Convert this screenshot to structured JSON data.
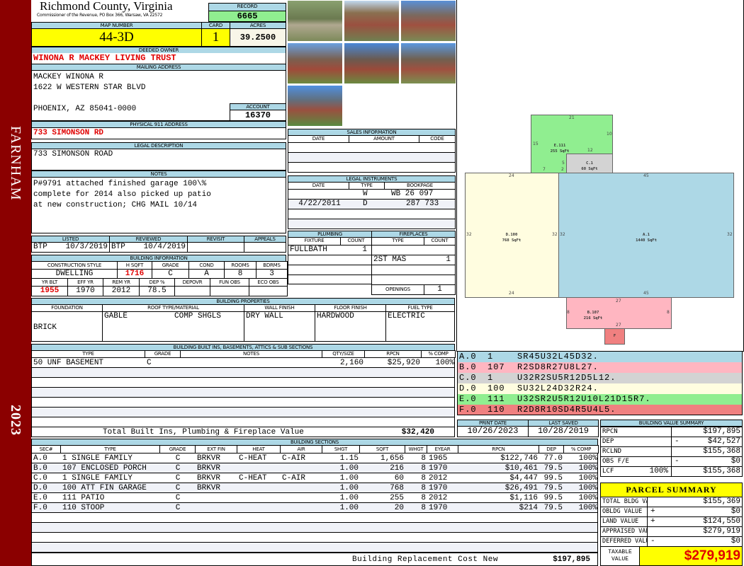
{
  "sidebar": {
    "district": "FARNHAM",
    "year": "2023"
  },
  "header": {
    "county": "Richmond County, Virginia",
    "office": "Commissioner of the Revenue, PO Box 366, Warsaw, VA 22572",
    "record_label": "RECORD",
    "record": "6665"
  },
  "parcel": {
    "map_label": "MAP NUMBER",
    "map": "44-3D",
    "card_label": "CARD",
    "card": "1",
    "acres_label": "ACRES",
    "acres": "39.2500"
  },
  "owner": {
    "label": "DEEDED OWNER",
    "name": "WINONA R MACKEY LIVING TRUST",
    "mail_label": "MAILING ADDRESS",
    "mail": [
      "MACKEY WINONA R",
      "1622 W WESTERN STAR BLVD",
      "",
      "PHOENIX, AZ 85041-0000"
    ],
    "account_label": "ACCOUNT",
    "account": "16370"
  },
  "address": {
    "label": "PHYSICAL 911 ADDRESS",
    "value": "733 SIMONSON RD"
  },
  "legal": {
    "label": "LEGAL DESCRIPTION",
    "value": "733 SIMONSON ROAD"
  },
  "notes": {
    "label": "NOTES",
    "lines": [
      "P#9791 attached finished garage 100\\%",
      "complete for 2014 also picked up patio",
      "at new construction; CHG MAIL 10/14"
    ]
  },
  "listing": {
    "headers": [
      "LISTED",
      "REVIEWED",
      "REVISIT",
      "APPEALS"
    ],
    "listed_by": "BTP",
    "listed": "10/3/2019",
    "reviewed_by": "BTP",
    "reviewed": "10/4/2019",
    "revisit": "",
    "appeals": ""
  },
  "building_info": {
    "label": "BUILDING INFORMATION",
    "h1": [
      "CONSTRUCTION STYLE",
      "H SQFT",
      "GRADE",
      "COND",
      "ROOMS",
      "BDRMS"
    ],
    "v1": [
      "DWELLING",
      "1716",
      "C",
      "A",
      "8",
      "3"
    ],
    "h2": [
      "YR BLT",
      "EFF YR",
      "REM YR",
      "DEP %",
      "DEPOVR",
      "FUN OBS",
      "ECO OBS"
    ],
    "v2": [
      "1955",
      "1970",
      "2012",
      "78.5",
      "",
      "",
      ""
    ]
  },
  "sales": {
    "label": "SALES INFORMATION",
    "headers": [
      "DATE",
      "AMOUNT",
      "CODE"
    ]
  },
  "instruments": {
    "label": "LEGAL INSTRUMENTS",
    "headers": [
      "DATE",
      "TYPE",
      "BOOKPAGE"
    ],
    "rows": [
      {
        "date": "",
        "type": "W",
        "book": "WB 26 097"
      },
      {
        "date": "4/22/2011",
        "type": "D",
        "book": "287 733"
      }
    ]
  },
  "plumbing": {
    "label": "PLUMBING",
    "headers": [
      "FIXTURE",
      "COUNT"
    ],
    "rows": [
      {
        "fixture": "FULLBATH",
        "count": "1"
      }
    ]
  },
  "fireplaces": {
    "label": "FIREPLACES",
    "headers": [
      "TYPE",
      "COUNT"
    ],
    "rows": [
      {
        "type": "2ST MAS",
        "count": "1"
      }
    ],
    "openings_label": "OPENINGS",
    "openings": "1"
  },
  "properties": {
    "label": "BUILDING PROPERTIES",
    "headers": [
      "FOUNDATION",
      "ROOF TYPE/MATERIAL",
      "WALL FINISH",
      "FLOOR FINISH",
      "FUEL TYPE"
    ],
    "foundation": "BRICK",
    "roof_type": "GABLE",
    "roof_material": "COMP SHGLS",
    "wall": "DRY WALL",
    "floor": "HARDWOOD",
    "fuel": "ELECTRIC"
  },
  "builtins": {
    "label": "BUILDING BUILT INS, BASEMENTS, ATTICS & SUB SECTIONS",
    "headers": [
      "TYPE",
      "GRADE",
      "NOTES",
      "QTY/SIZE",
      "RPCN",
      "% COMP"
    ],
    "rows": [
      {
        "type": "50 UNF BASEMENT",
        "grade": "C",
        "notes": "",
        "qty": "2,160",
        "rpcn": "$25,920",
        "comp": "100%"
      }
    ],
    "total_label": "Total Built Ins, Plumbing & Fireplace Value",
    "total": "$32,420"
  },
  "sections": {
    "label": "BUILDING SECTIONS",
    "headers": [
      "SEC#",
      "TYPE",
      "GRADE",
      "EXT FIN",
      "HEAT",
      "AIR",
      "SHGT",
      "SQFT",
      "WHGT",
      "EYEAR",
      "RPCN",
      "DEP",
      "% COMP"
    ],
    "rows": [
      [
        "A.0",
        "1 SINGLE FAMILY",
        "C",
        "BRKVR",
        "C-HEAT",
        "C-AIR",
        "1.15",
        "1,656",
        "8",
        "1965",
        "$122,746",
        "77.0",
        "100%"
      ],
      [
        "B.0",
        "107 ENCLOSED PORCH",
        "C",
        "BRKVR",
        "",
        "",
        "1.00",
        "216",
        "8",
        "1970",
        "$10,461",
        "79.5",
        "100%"
      ],
      [
        "C.0",
        "1 SINGLE FAMILY",
        "C",
        "BRKVR",
        "C-HEAT",
        "C-AIR",
        "1.00",
        "60",
        "8",
        "2012",
        "$4,447",
        "99.5",
        "100%"
      ],
      [
        "D.0",
        "100 ATT FIN GARAGE",
        "C",
        "BRKVR",
        "",
        "",
        "1.00",
        "768",
        "8",
        "1970",
        "$26,491",
        "79.5",
        "100%"
      ],
      [
        "E.0",
        "111 PATIO",
        "C",
        "",
        "",
        "",
        "1.00",
        "255",
        "8",
        "2012",
        "$1,116",
        "99.5",
        "100%"
      ],
      [
        "F.0",
        "110 STOOP",
        "C",
        "",
        "",
        "",
        "1.00",
        "20",
        "8",
        "1970",
        "$214",
        "79.5",
        "100%"
      ]
    ],
    "total_label": "Building Replacement Cost New",
    "total": "$197,895"
  },
  "sketch": {
    "areas": [
      {
        "id": "A.1",
        "sqft": "1440 SqFt",
        "color": "#add8e6"
      },
      {
        "id": "D.100",
        "sqft": "768 SqFt",
        "color": "#fffde0"
      },
      {
        "id": "E.111",
        "sqft": "255 SqFt",
        "color": "#90ee90"
      },
      {
        "id": "C.1",
        "sqft": "60 SqFt",
        "color": "#d3d3d3"
      },
      {
        "id": "B.107",
        "sqft": "216 SqFt",
        "color": "#ffb6c1"
      },
      {
        "id": "F",
        "sqft": "",
        "color": "#f08080"
      }
    ],
    "dims": {
      "a_top": "45",
      "a_bottom": "45",
      "a_left": "32",
      "a_right": "32",
      "d_top": "24",
      "d_bottom": "24",
      "d_left": "32",
      "d_right": "32",
      "e_top": "21",
      "e_right": "10",
      "e_left": "15",
      "e_inner": "12",
      "e_b1": "7",
      "e_b2": "2",
      "e_b3": "5",
      "b_top": "27",
      "b_bottom": "27",
      "b_left": "8",
      "b_right": "8"
    },
    "legend": [
      {
        "sec": "A.0",
        "code": "1",
        "path": "SR45U32L45D32.",
        "color": "#add8e6"
      },
      {
        "sec": "B.0",
        "code": "107",
        "path": "R2SD8R27U8L27.",
        "color": "#ffb6c1"
      },
      {
        "sec": "C.0",
        "code": "1",
        "path": "U32R2SU5R12D5L12.",
        "color": "#d3d3d3"
      },
      {
        "sec": "D.0",
        "code": "100",
        "path": "SU32L24D32R24.",
        "color": "#fffde0"
      },
      {
        "sec": "E.0",
        "code": "111",
        "path": "U32SR2U5R12U10L21D15R7.",
        "color": "#90ee90"
      },
      {
        "sec": "F.0",
        "code": "110",
        "path": "R2D8R10SD4R5U4L5.",
        "color": "#f08080"
      }
    ]
  },
  "dates": {
    "print_label": "PRINT DATE",
    "print": "10/26/2023",
    "saved_label": "LAST SAVED",
    "saved": "10/28/2019"
  },
  "value_summary": {
    "label": "BUILDING VALUE SUMMARY",
    "rows": [
      {
        "label": "RPCN",
        "sign": "",
        "value": "$197,895"
      },
      {
        "label": "DEP",
        "sign": "-",
        "value": "$42,527"
      },
      {
        "label": "RCLND",
        "sign": "",
        "value": "$155,368"
      },
      {
        "label": "OBS F/E",
        "sign": "-",
        "value": "$0"
      },
      {
        "label": "LCF",
        "extra": "100%",
        "sign": "",
        "value": "$155,368"
      }
    ]
  },
  "parcel_summary": {
    "label": "PARCEL SUMMARY",
    "rows": [
      {
        "label": "TOTAL BLDG VALUE",
        "sign": "",
        "value": "$155,369"
      },
      {
        "label": "OBLDG VALUE",
        "sign": "+",
        "value": "$0"
      },
      {
        "label": "LAND VALUE",
        "sign": "+",
        "value": "$124,550"
      },
      {
        "label": "APPRAISED VALUE",
        "sign": "",
        "value": "$279,919"
      },
      {
        "label": "DEFERRED VALUE",
        "sign": "-",
        "value": "$0"
      }
    ],
    "taxable_label": "TAXABLE VALUE",
    "taxable": "$279,919"
  },
  "colors": {
    "sidebar": "#8b0000",
    "header": "#add8e6",
    "highlight": "#ffff00",
    "record": "#90ee90",
    "alert": "#e00000"
  }
}
